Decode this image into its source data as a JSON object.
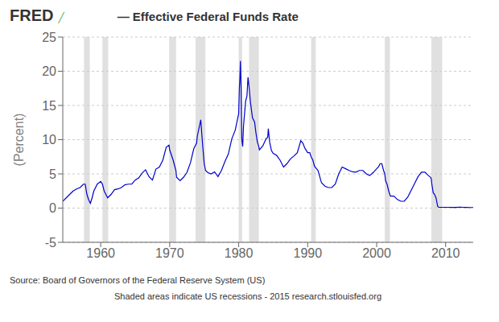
{
  "chart_data": {
    "type": "line",
    "title": "— Effective Federal Funds Rate",
    "y_label": "(Percent)",
    "annotations": [
      "FRED",
      "╱",
      "Source: Board of Governors of the Federal Reserve System (US)",
      "Shaded areas indicate US recessions - 2015 research.stlouisfed.org"
    ],
    "xlim": [
      1954.5,
      2014.0
    ],
    "ylim": [
      -5,
      25
    ],
    "xticks": [
      1960,
      1970,
      1980,
      1990,
      2000,
      2010
    ],
    "yticks": [
      -5,
      0,
      5,
      10,
      15,
      20,
      25
    ],
    "grid": true,
    "color": "#0000CC",
    "recessions": [
      [
        1957.58,
        1958.42
      ],
      [
        1960.25,
        1961.08
      ],
      [
        1969.92,
        1970.92
      ],
      [
        1973.75,
        1975.17
      ],
      [
        1980.0,
        1980.5
      ],
      [
        1981.5,
        1982.92
      ],
      [
        1990.5,
        1991.17
      ],
      [
        2001.17,
        2001.92
      ],
      [
        2007.92,
        2009.5
      ]
    ],
    "x": [
      1954.5,
      1955.0,
      1955.5,
      1956.0,
      1956.5,
      1957.0,
      1957.5,
      1957.75,
      1958.0,
      1958.25,
      1958.5,
      1958.75,
      1959.0,
      1959.5,
      1960.0,
      1960.25,
      1960.5,
      1960.75,
      1961.0,
      1961.5,
      1962.0,
      1962.5,
      1963.0,
      1963.5,
      1964.0,
      1964.5,
      1965.0,
      1965.5,
      1966.0,
      1966.5,
      1967.0,
      1967.5,
      1968.0,
      1968.5,
      1969.0,
      1969.5,
      1969.9,
      1970.0,
      1970.5,
      1970.9,
      1971.0,
      1971.5,
      1972.0,
      1972.5,
      1973.0,
      1973.5,
      1973.9,
      1974.0,
      1974.5,
      1974.75,
      1975.0,
      1975.2,
      1975.5,
      1976.0,
      1976.5,
      1977.0,
      1977.5,
      1978.0,
      1978.5,
      1979.0,
      1979.5,
      1980.0,
      1980.1,
      1980.18,
      1980.25,
      1980.35,
      1980.45,
      1980.58,
      1980.7,
      1981.0,
      1981.2,
      1981.35,
      1981.5,
      1981.7,
      1982.0,
      1982.3,
      1982.5,
      1982.7,
      1982.92,
      1983.0,
      1983.5,
      1984.0,
      1984.2,
      1984.3,
      1984.4,
      1984.5,
      1984.75,
      1985.0,
      1985.5,
      1986.0,
      1986.5,
      1987.0,
      1987.5,
      1988.0,
      1988.5,
      1989.0,
      1989.3,
      1989.6,
      1990.0,
      1990.3,
      1990.5,
      1990.75,
      1991.0,
      1991.17,
      1991.5,
      1992.0,
      1992.5,
      1993.0,
      1993.5,
      1994.0,
      1994.5,
      1995.0,
      1995.5,
      1996.0,
      1996.5,
      1997.0,
      1997.5,
      1998.0,
      1998.5,
      1999.0,
      1999.5,
      2000.0,
      2000.25,
      2000.5,
      2000.75,
      2001.0,
      2001.17,
      2001.3,
      2001.5,
      2001.75,
      2001.9,
      2002.0,
      2002.5,
      2003.0,
      2003.5,
      2004.0,
      2004.5,
      2005.0,
      2005.5,
      2006.0,
      2006.5,
      2007.0,
      2007.5,
      2007.83,
      2007.92,
      2008.0,
      2008.2,
      2008.4,
      2008.6,
      2008.85,
      2009.0,
      2009.5,
      2010.0,
      2010.5,
      2011.0,
      2011.5,
      2012.0,
      2012.5,
      2013.0,
      2013.5,
      2014.0
    ],
    "values": [
      1.0,
      1.5,
      2.0,
      2.5,
      2.8,
      3.0,
      3.5,
      3.5,
      2.0,
      1.2,
      0.7,
      1.5,
      2.5,
      3.5,
      3.9,
      3.5,
      2.5,
      2.0,
      1.5,
      2.0,
      2.7,
      2.8,
      3.0,
      3.4,
      3.5,
      3.5,
      4.1,
      4.4,
      5.1,
      5.6,
      4.6,
      4.1,
      5.7,
      6.0,
      7.0,
      8.9,
      9.2,
      8.5,
      7.0,
      5.5,
      4.5,
      4.0,
      4.5,
      5.2,
      6.6,
      8.7,
      9.5,
      10.5,
      12.9,
      9.5,
      6.5,
      5.5,
      5.2,
      5.0,
      5.3,
      4.6,
      5.5,
      6.8,
      7.9,
      10.1,
      11.4,
      13.8,
      17.6,
      19.1,
      21.5,
      17.5,
      10.0,
      9.0,
      12.0,
      15.6,
      16.4,
      19.1,
      17.8,
      15.5,
      13.2,
      12.6,
      11.0,
      9.7,
      8.95,
      8.5,
      9.1,
      10.2,
      10.3,
      11.6,
      10.5,
      9.6,
      8.4,
      8.0,
      7.7,
      7.0,
      6.0,
      6.5,
      7.2,
      7.6,
      8.1,
      9.85,
      9.5,
      8.75,
      8.1,
      8.1,
      7.5,
      7.0,
      6.1,
      5.9,
      5.5,
      3.7,
      3.2,
      3.0,
      3.0,
      3.5,
      5.0,
      6.0,
      5.75,
      5.5,
      5.3,
      5.25,
      5.5,
      5.5,
      5.0,
      4.75,
      5.2,
      5.75,
      6.0,
      6.5,
      6.5,
      5.5,
      5.0,
      4.0,
      3.5,
      2.5,
      2.0,
      1.75,
      1.75,
      1.25,
      1.0,
      1.0,
      1.6,
      2.6,
      3.6,
      4.6,
      5.25,
      5.25,
      4.75,
      4.5,
      4.25,
      3.5,
      2.25,
      2.0,
      1.5,
      0.25,
      0.12,
      0.12,
      0.12,
      0.12,
      0.1,
      0.1,
      0.14,
      0.12,
      0.1,
      0.09,
      0.09
    ]
  }
}
